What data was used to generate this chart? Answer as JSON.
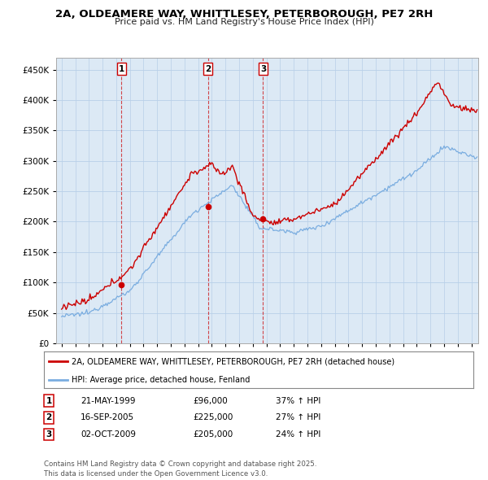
{
  "title_line1": "2A, OLDEAMERE WAY, WHITTLESEY, PETERBOROUGH, PE7 2RH",
  "title_line2": "Price paid vs. HM Land Registry's House Price Index (HPI)",
  "red_label": "2A, OLDEAMERE WAY, WHITTLESEY, PETERBOROUGH, PE7 2RH (detached house)",
  "blue_label": "HPI: Average price, detached house, Fenland",
  "footer_line1": "Contains HM Land Registry data © Crown copyright and database right 2025.",
  "footer_line2": "This data is licensed under the Open Government Licence v3.0.",
  "sales": [
    {
      "num": "1",
      "date": "21-MAY-1999",
      "price": "£96,000",
      "hpi": "37% ↑ HPI",
      "x": 1999.38
    },
    {
      "num": "2",
      "date": "16-SEP-2005",
      "price": "£225,000",
      "hpi": "27% ↑ HPI",
      "x": 2005.71
    },
    {
      "num": "3",
      "date": "02-OCT-2009",
      "price": "£205,000",
      "hpi": "24% ↑ HPI",
      "x": 2009.75
    }
  ],
  "sale_values": [
    96000,
    225000,
    205000
  ],
  "red_color": "#cc0000",
  "blue_color": "#7aade0",
  "plot_bg_color": "#dce9f5",
  "background_color": "#ffffff",
  "grid_color": "#b8cfe8",
  "ylim": [
    0,
    470000
  ],
  "yticks": [
    0,
    50000,
    100000,
    150000,
    200000,
    250000,
    300000,
    350000,
    400000,
    450000
  ],
  "xlim_start": 1994.6,
  "xlim_end": 2025.5
}
